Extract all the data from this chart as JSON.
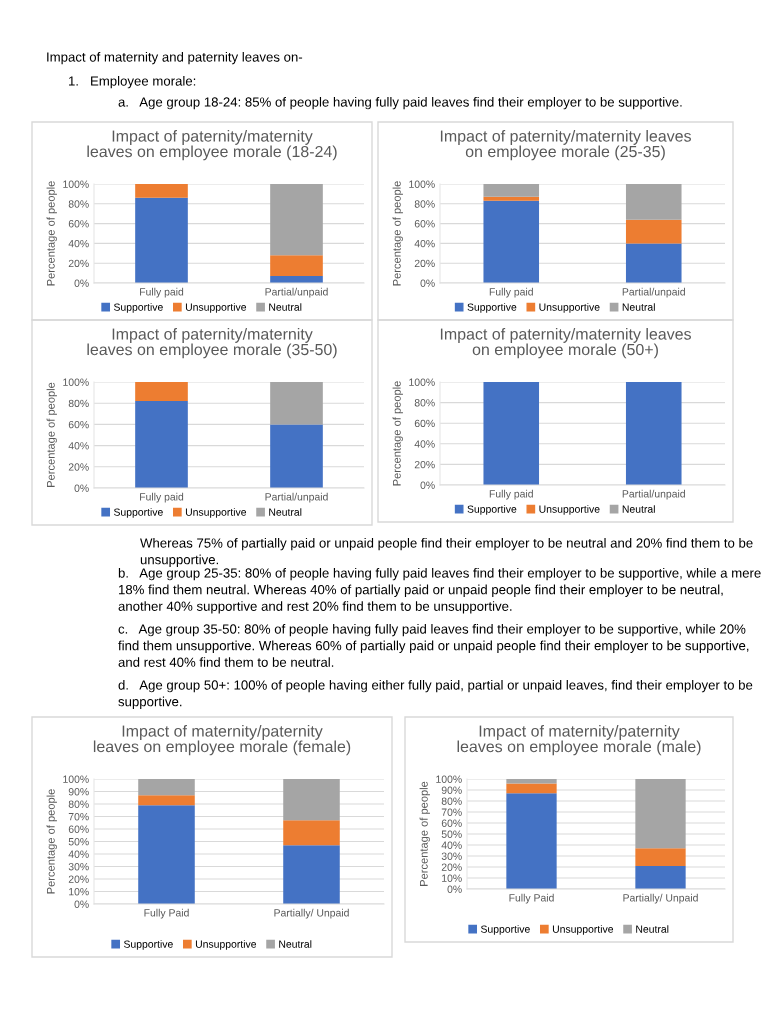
{
  "chart_data": [
    {
      "type": "other",
      "annotations": [
        "Impact of maternity and paternity leaves on-",
        "1.   Employee morale:",
        "a.   Age group 18-24: 85% of people having fully paid leaves find their employer to be supportive."
      ]
    },
    {
      "type": "bar",
      "stacked": true,
      "title": "Impact of paternity/maternity\nleaves on employee morale (18-24)",
      "ylabel": "Percentage of people",
      "categories": [
        "Fully paid",
        "Partial/unpaid"
      ],
      "ylim": [
        0,
        100
      ],
      "yticks": [
        {
          "value": 0,
          "label": "0%"
        },
        {
          "value": 20,
          "label": "20%"
        },
        {
          "value": 40,
          "label": "40%"
        },
        {
          "value": 60,
          "label": "60%"
        },
        {
          "value": 80,
          "label": "80%"
        },
        {
          "value": 100,
          "label": "100%"
        }
      ],
      "grid": "y",
      "legend": "bottom",
      "series": [
        {
          "name": "Supportive",
          "color": "#4472c4",
          "values": [
            86,
            7
          ]
        },
        {
          "name": "Unsupportive",
          "color": "#ed7d31",
          "values": [
            14,
            21
          ]
        },
        {
          "name": "Neutral",
          "color": "#a5a5a5",
          "values": [
            0,
            72
          ]
        }
      ]
    },
    {
      "type": "bar",
      "stacked": true,
      "title": "Impact of paternity/maternity leaves\non employee morale (25-35)",
      "ylabel": "Percentage of people",
      "categories": [
        "Fully paid",
        "Partial/unpaid"
      ],
      "ylim": [
        0,
        100
      ],
      "yticks": [
        {
          "value": 0,
          "label": "0%"
        },
        {
          "value": 20,
          "label": "20%"
        },
        {
          "value": 40,
          "label": "40%"
        },
        {
          "value": 60,
          "label": "60%"
        },
        {
          "value": 80,
          "label": "80%"
        },
        {
          "value": 100,
          "label": "100%"
        }
      ],
      "grid": "y",
      "legend": "bottom",
      "series": [
        {
          "name": "Supportive",
          "color": "#4472c4",
          "values": [
            83,
            40
          ]
        },
        {
          "name": "Unsupportive",
          "color": "#ed7d31",
          "values": [
            4,
            24
          ]
        },
        {
          "name": "Neutral",
          "color": "#a5a5a5",
          "values": [
            13,
            36
          ]
        }
      ]
    },
    {
      "type": "bar",
      "stacked": true,
      "title": "Impact of paternity/maternity\nleaves on employee morale (35-50)",
      "ylabel": "Percentage of people",
      "categories": [
        "Fully paid",
        "Partial/unpaid"
      ],
      "ylim": [
        0,
        100
      ],
      "yticks": [
        {
          "value": 0,
          "label": "0%"
        },
        {
          "value": 20,
          "label": "20%"
        },
        {
          "value": 40,
          "label": "40%"
        },
        {
          "value": 60,
          "label": "60%"
        },
        {
          "value": 80,
          "label": "80%"
        },
        {
          "value": 100,
          "label": "100%"
        }
      ],
      "grid": "y",
      "legend": "bottom",
      "series": [
        {
          "name": "Supportive",
          "color": "#4472c4",
          "values": [
            82,
            60
          ]
        },
        {
          "name": "Unsupportive",
          "color": "#ed7d31",
          "values": [
            18,
            0
          ]
        },
        {
          "name": "Neutral",
          "color": "#a5a5a5",
          "values": [
            0,
            40
          ]
        }
      ]
    },
    {
      "type": "bar",
      "stacked": true,
      "title": "Impact of paternity/maternity leaves\non employee morale (50+)",
      "ylabel": "Percentage of people",
      "categories": [
        "Fully paid",
        "Partial/unpaid"
      ],
      "ylim": [
        0,
        100
      ],
      "yticks": [
        {
          "value": 0,
          "label": "0%"
        },
        {
          "value": 20,
          "label": "20%"
        },
        {
          "value": 40,
          "label": "40%"
        },
        {
          "value": 60,
          "label": "60%"
        },
        {
          "value": 80,
          "label": "80%"
        },
        {
          "value": 100,
          "label": "100%"
        }
      ],
      "grid": "y",
      "legend": "bottom",
      "series": [
        {
          "name": "Supportive",
          "color": "#4472c4",
          "values": [
            100,
            100
          ]
        },
        {
          "name": "Unsupportive",
          "color": "#ed7d31",
          "values": [
            0,
            0
          ]
        },
        {
          "name": "Neutral",
          "color": "#a5a5a5",
          "values": [
            0,
            0
          ]
        }
      ]
    },
    {
      "type": "other",
      "annotations": [
        "Whereas 75% of partially paid or unpaid people find their employer to be neutral and 20% find them to be unsupportive.",
        "b.   Age group 25-35: 80% of people having fully paid leaves find their employer to be supportive, while a mere 18% find them neutral. Whereas 40% of partially paid or unpaid people find their employer to be neutral, another 40% supportive and rest 20% find them to be unsupportive.",
        "c.   Age group 35-50: 80% of people having fully paid leaves find their employer to be supportive, while 20% find them unsupportive. Whereas 60% of partially paid or unpaid people find their employer to be supportive, and rest 40% find them to be neutral.",
        "d.   Age group 50+: 100% of people having either fully paid, partial or unpaid leaves, find their employer to be supportive."
      ]
    },
    {
      "type": "bar",
      "stacked": true,
      "title": "Impact of maternity/paternity\nleaves on employee morale (female)",
      "ylabel": "Percentage of people",
      "categories": [
        "Fully Paid",
        "Partially/ Unpaid"
      ],
      "ylim": [
        0,
        100
      ],
      "yticks": [
        {
          "value": 0,
          "label": "0%"
        },
        {
          "value": 10,
          "label": "10%"
        },
        {
          "value": 20,
          "label": "20%"
        },
        {
          "value": 30,
          "label": "30%"
        },
        {
          "value": 40,
          "label": "40%"
        },
        {
          "value": 50,
          "label": "50%"
        },
        {
          "value": 60,
          "label": "60%"
        },
        {
          "value": 70,
          "label": "70%"
        },
        {
          "value": 80,
          "label": "80%"
        },
        {
          "value": 90,
          "label": "90%"
        },
        {
          "value": 100,
          "label": "100%"
        }
      ],
      "grid": "y",
      "legend": "bottom",
      "series": [
        {
          "name": "Supportive",
          "color": "#4472c4",
          "values": [
            79,
            47
          ]
        },
        {
          "name": "Unsupportive",
          "color": "#ed7d31",
          "values": [
            8,
            20
          ]
        },
        {
          "name": "Neutral",
          "color": "#a5a5a5",
          "values": [
            13,
            33
          ]
        }
      ]
    },
    {
      "type": "bar",
      "stacked": true,
      "title": "Impact of maternity/paternity\nleaves on employee morale (male)",
      "ylabel": "Percentage of people",
      "categories": [
        "Fully Paid",
        "Partially/ Unpaid"
      ],
      "ylim": [
        0,
        100
      ],
      "yticks": [
        {
          "value": 0,
          "label": "0%"
        },
        {
          "value": 10,
          "label": "10%"
        },
        {
          "value": 20,
          "label": "20%"
        },
        {
          "value": 30,
          "label": "30%"
        },
        {
          "value": 40,
          "label": "40%"
        },
        {
          "value": 50,
          "label": "50%"
        },
        {
          "value": 60,
          "label": "60%"
        },
        {
          "value": 70,
          "label": "70%"
        },
        {
          "value": 80,
          "label": "80%"
        },
        {
          "value": 90,
          "label": "90%"
        },
        {
          "value": 100,
          "label": "100%"
        }
      ],
      "grid": "y",
      "legend": "bottom",
      "series": [
        {
          "name": "Supportive",
          "color": "#4472c4",
          "values": [
            87,
            21
          ]
        },
        {
          "name": "Unsupportive",
          "color": "#ed7d31",
          "values": [
            9,
            16
          ]
        },
        {
          "name": "Neutral",
          "color": "#a5a5a5",
          "values": [
            4,
            63
          ]
        }
      ]
    }
  ]
}
